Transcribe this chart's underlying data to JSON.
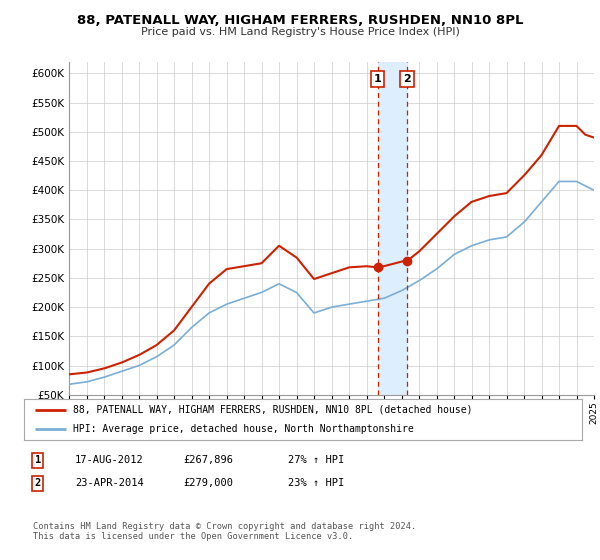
{
  "title": "88, PATENALL WAY, HIGHAM FERRERS, RUSHDEN, NN10 8PL",
  "subtitle": "Price paid vs. HM Land Registry's House Price Index (HPI)",
  "legend_line1": "88, PATENALL WAY, HIGHAM FERRERS, RUSHDEN, NN10 8PL (detached house)",
  "legend_line2": "HPI: Average price, detached house, North Northamptonshire",
  "transaction1_date": "17-AUG-2012",
  "transaction1_price": "£267,896",
  "transaction1_hpi": "27% ↑ HPI",
  "transaction2_date": "23-APR-2014",
  "transaction2_price": "£279,000",
  "transaction2_hpi": "23% ↑ HPI",
  "footer": "Contains HM Land Registry data © Crown copyright and database right 2024.\nThis data is licensed under the Open Government Licence v3.0.",
  "hpi_color": "#7aaed6",
  "price_color": "#cc2200",
  "marker_color": "#cc2200",
  "highlight_color": "#ddeeff",
  "grid_color": "#cccccc",
  "bg_color": "#ffffff",
  "ylim": [
    50000,
    620000
  ],
  "yticks": [
    50000,
    100000,
    150000,
    200000,
    250000,
    300000,
    350000,
    400000,
    450000,
    500000,
    550000,
    600000
  ],
  "year_start": 1995,
  "year_end": 2025,
  "transaction1_year": 2012.63,
  "transaction2_year": 2014.31,
  "transaction1_value_red": 267896,
  "transaction2_value_red": 279000
}
